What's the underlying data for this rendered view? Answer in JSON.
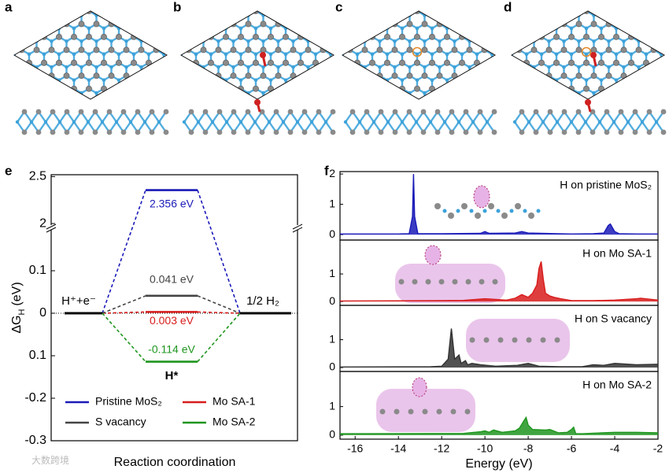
{
  "panel_labels": [
    "a",
    "b",
    "c",
    "d",
    "e",
    "f"
  ],
  "watermark": "大数跨境",
  "chart_data": [
    {
      "type": "energy",
      "ylabel": {
        "main": "ΔG",
        "sub": "H",
        "unit": "(eV)"
      },
      "xlabel": "Reaction coordination",
      "categories": [
        "H⁺+e⁻",
        "H*",
        "1/2 H₂"
      ],
      "ylim": [
        -0.3,
        2.52
      ],
      "ybreak": [
        0.2,
        1.95
      ],
      "yticks": [
        2.5,
        2.0,
        0.1,
        0.0,
        {
          "value": -0.1,
          "label": "0.1"
        },
        -0.2,
        -0.3
      ],
      "zero_line": true,
      "level_color": "#000000",
      "series": [
        {
          "name": "Pristine MoS₂",
          "color": "#1a1ab8",
          "values": [
            0,
            2.356,
            0
          ],
          "value_labels": [
            null,
            "2.356 eV",
            null
          ]
        },
        {
          "name": "Mo SA-1",
          "color": "#d81c1c",
          "values": [
            0,
            0.003,
            0
          ],
          "value_labels": [
            null,
            "0.003 eV",
            null
          ]
        },
        {
          "name": "S vacancy",
          "color": "#444444",
          "values": [
            0,
            0.041,
            0
          ],
          "value_labels": [
            null,
            "0.041 eV",
            null
          ]
        },
        {
          "name": "Mo SA-2",
          "color": "#1e951e",
          "values": [
            0,
            -0.114,
            0
          ],
          "value_labels": [
            null,
            "-0.114 eV",
            null
          ]
        }
      ]
    },
    {
      "type": "line",
      "title": "H on pristine MoS₂",
      "xlim": [
        -16.7,
        -2
      ],
      "ylim": [
        -0.18,
        2.08
      ],
      "yticks": [
        0,
        1,
        2
      ],
      "x": [
        -16.7,
        -14,
        -13.5,
        -13.35,
        -13.3,
        -13.25,
        -13.1,
        -12,
        -10.2,
        -10,
        -9.8,
        -8.6,
        -8.3,
        -8,
        -6,
        -5,
        -4.5,
        -4.3,
        -4.2,
        -4.1,
        -4,
        -3.8,
        -3,
        -2
      ],
      "series": [
        {
          "name": "H on pristine MoS₂",
          "color": "#1a1ab8",
          "values": [
            0.02,
            0.02,
            0.03,
            0.6,
            2.0,
            0.6,
            0.03,
            0.03,
            0.04,
            0.1,
            0.04,
            0.05,
            0.1,
            0.05,
            0.02,
            0.03,
            0.05,
            0.3,
            0.35,
            0.22,
            0.1,
            0.03,
            0.02,
            0.02
          ]
        }
      ]
    },
    {
      "type": "line",
      "title": "H on Mo SA-1",
      "xlim": [
        -16.7,
        -2
      ],
      "ylim": [
        -0.14,
        2.23
      ],
      "yticks": [
        0,
        1
      ],
      "x": [
        -16.7,
        -12,
        -11,
        -10,
        -9,
        -8.6,
        -8.3,
        -8,
        -7.8,
        -7.6,
        -7.5,
        -7.4,
        -7.3,
        -7.2,
        -7,
        -6.8,
        -6.5,
        -6,
        -5,
        -4,
        -3,
        -2.8,
        -2
      ],
      "series": [
        {
          "name": "H on Mo SA-1",
          "color": "#d81c1c",
          "values": [
            0.02,
            0.03,
            0.04,
            0.1,
            0.05,
            0.12,
            0.25,
            0.15,
            0.3,
            0.6,
            1.2,
            1.45,
            0.8,
            0.3,
            0.2,
            0.15,
            0.1,
            0.03,
            0.03,
            0.05,
            0.1,
            0.12,
            0.05
          ]
        }
      ]
    },
    {
      "type": "line",
      "title": "H on S vacancy",
      "xlim": [
        -16.7,
        -2
      ],
      "ylim": [
        -0.14,
        2.23
      ],
      "yticks": [
        0,
        1
      ],
      "x": [
        -16.7,
        -12.5,
        -12,
        -11.7,
        -11.55,
        -11.4,
        -11.2,
        -11.1,
        -10.9,
        -10.8,
        -10.6,
        -10.2,
        -9.5,
        -8.5,
        -8,
        -7.5,
        -6.5,
        -5.5,
        -5,
        -4.5,
        -4,
        -3,
        -2
      ],
      "series": [
        {
          "name": "H on S vacancy",
          "color": "#333333",
          "values": [
            0.02,
            0.03,
            0.05,
            0.3,
            1.4,
            0.3,
            0.45,
            0.15,
            0.25,
            0.1,
            0.15,
            0.1,
            0.05,
            0.08,
            0.15,
            0.05,
            0.03,
            0.03,
            0.1,
            0.08,
            0.15,
            0.1,
            0.12
          ]
        }
      ]
    },
    {
      "type": "line",
      "title": "H on Mo SA-2",
      "xlabel": "Energy (eV)",
      "xlim": [
        -16.7,
        -2
      ],
      "ylim": [
        -0.14,
        2.23
      ],
      "yticks": [
        0,
        1
      ],
      "xticks": [
        -16,
        -14,
        -12,
        -10,
        -8,
        -6,
        -4,
        -2
      ],
      "x": [
        -16.7,
        -11,
        -10.2,
        -10,
        -9.8,
        -9.6,
        -9.2,
        -8.6,
        -8.4,
        -8.2,
        -8.1,
        -8,
        -7.8,
        -7.2,
        -7,
        -6.6,
        -6.2,
        -6,
        -5.9,
        -5.8,
        -5.5,
        -4,
        -3,
        -2
      ],
      "series": [
        {
          "name": "H on Mo SA-2",
          "color": "#1e951e",
          "values": [
            0.05,
            0.06,
            0.12,
            0.15,
            0.1,
            0.18,
            0.1,
            0.15,
            0.25,
            0.5,
            0.62,
            0.35,
            0.2,
            0.18,
            0.2,
            0.08,
            0.1,
            0.2,
            0.28,
            0.05,
            0.05,
            0.1,
            0.1,
            0.08
          ]
        }
      ]
    }
  ]
}
